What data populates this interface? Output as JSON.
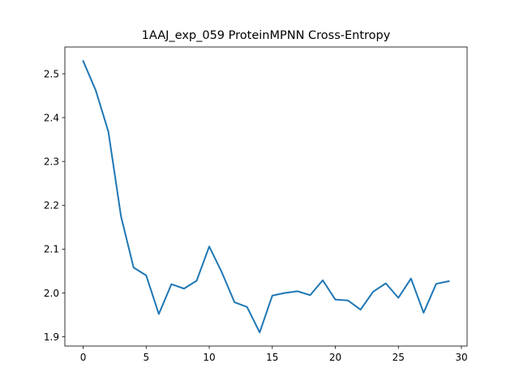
{
  "chart_data": {
    "type": "line",
    "title": "1AAJ_exp_059 ProteinMPNN Cross-Entropy",
    "xlabel": "",
    "ylabel": "",
    "xlim": [
      -1.45,
      30.45
    ],
    "ylim": [
      1.879,
      2.561
    ],
    "x_ticks": [
      0,
      5,
      10,
      15,
      20,
      25,
      30
    ],
    "x_tick_labels": [
      "0",
      "5",
      "10",
      "15",
      "20",
      "25",
      "30"
    ],
    "y_ticks": [
      1.9,
      2.0,
      2.1,
      2.2,
      2.3,
      2.4,
      2.5
    ],
    "y_tick_labels": [
      "1.9",
      "2.0",
      "2.1",
      "2.2",
      "2.3",
      "2.4",
      "2.5"
    ],
    "grid": false,
    "series": [
      {
        "color": "#1f77b4",
        "x": [
          0,
          1,
          2,
          3,
          4,
          5,
          6,
          7,
          8,
          9,
          10,
          11,
          12,
          13,
          14,
          15,
          16,
          17,
          18,
          19,
          20,
          21,
          22,
          23,
          24,
          25,
          26,
          27,
          28,
          29
        ],
        "y": [
          2.529,
          2.462,
          2.368,
          2.175,
          2.058,
          2.04,
          1.952,
          2.02,
          2.01,
          2.028,
          2.106,
          2.047,
          1.979,
          1.968,
          1.91,
          1.994,
          2.0,
          2.004,
          1.995,
          2.029,
          1.985,
          1.983,
          1.962,
          2.003,
          2.022,
          1.989,
          2.033,
          1.955,
          2.021,
          2.027
        ]
      }
    ]
  }
}
